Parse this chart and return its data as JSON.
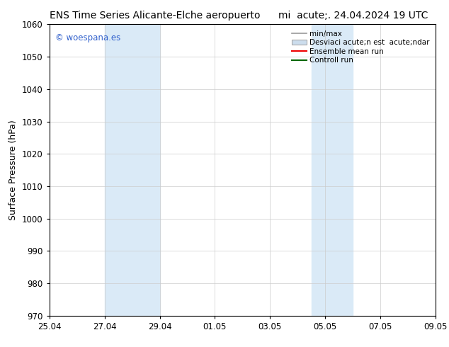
{
  "title_left": "ENS Time Series Alicante-Elche aeropuerto",
  "title_right": "mi  acute;. 24.04.2024 19 UTC",
  "ylabel": "Surface Pressure (hPa)",
  "ylim": [
    970,
    1060
  ],
  "yticks": [
    970,
    980,
    990,
    1000,
    1010,
    1020,
    1030,
    1040,
    1050,
    1060
  ],
  "xtick_labels": [
    "25.04",
    "27.04",
    "29.04",
    "01.05",
    "03.05",
    "05.05",
    "07.05",
    "09.05"
  ],
  "xtick_positions": [
    0,
    2,
    4,
    6,
    8,
    10,
    12,
    14
  ],
  "shaded_regions": [
    {
      "x_start": 2,
      "x_end": 4,
      "color": "#daeaf7"
    },
    {
      "x_start": 9.5,
      "x_end": 11,
      "color": "#daeaf7"
    }
  ],
  "watermark_text": "© woespana.es",
  "watermark_color": "#3060cc",
  "legend_entries": [
    {
      "label": "min/max",
      "color": "#999999",
      "lw": 1.2,
      "style": "line"
    },
    {
      "label": "Desviaci acute;n est  acute;ndar",
      "color": "#ccdded",
      "style": "box"
    },
    {
      "label": "Ensemble mean run",
      "color": "#ee0000",
      "lw": 1.5,
      "style": "line"
    },
    {
      "label": "Controll run",
      "color": "#006600",
      "lw": 1.5,
      "style": "line"
    }
  ],
  "bg_color": "#ffffff",
  "axis_color": "#000000",
  "grid_color": "#cccccc",
  "title_fontsize": 10,
  "tick_fontsize": 8.5,
  "ylabel_fontsize": 9,
  "legend_fontsize": 7.5
}
